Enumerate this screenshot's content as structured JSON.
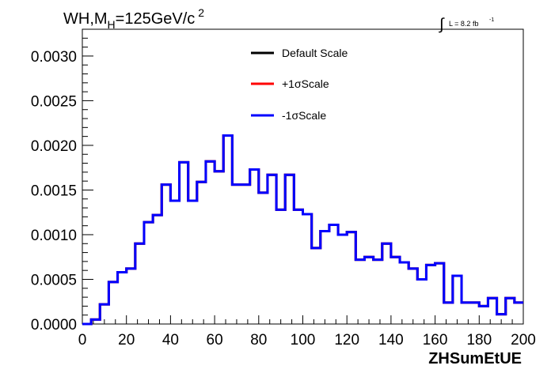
{
  "chart_data": {
    "type": "histogram",
    "title": {
      "main": "WH,M",
      "subscript": "H",
      "rest": "=125GeV/c",
      "superscript": "2"
    },
    "lumi": {
      "integral_symbol": "∫",
      "text": "L = 8.2 fb",
      "superscript": "-1"
    },
    "xlabel": "ZHSumEtUE",
    "ylabel": "",
    "xlim": [
      0,
      200
    ],
    "ylim": [
      0,
      0.0033
    ],
    "x_ticks": [
      "0",
      "20",
      "40",
      "60",
      "80",
      "100",
      "120",
      "140",
      "160",
      "180",
      "200"
    ],
    "y_ticks": [
      "0.0000",
      "0.0005",
      "0.0010",
      "0.0015",
      "0.0020",
      "0.0025",
      "0.0030"
    ],
    "legend_position": "top-center",
    "bin_edges_start": 0,
    "bin_width": 4,
    "series": [
      {
        "name": "Default Scale",
        "color": "#000000",
        "values": [
          0.0,
          5e-05,
          0.00022,
          0.00047,
          0.00058,
          0.00062,
          0.0009,
          0.00114,
          0.00122,
          0.00156,
          0.00138,
          0.00181,
          0.00138,
          0.00159,
          0.00182,
          0.00171,
          0.00211,
          0.00156,
          0.00156,
          0.00173,
          0.00147,
          0.00167,
          0.00128,
          0.00167,
          0.00128,
          0.00123,
          0.00085,
          0.00104,
          0.00111,
          0.001,
          0.00103,
          0.00072,
          0.00075,
          0.00072,
          0.0009,
          0.00075,
          0.00069,
          0.00062,
          0.0005,
          0.00066,
          0.00068,
          0.00024,
          0.00054,
          0.00024,
          0.00024,
          0.0002,
          0.00029,
          0.00011,
          0.00029,
          0.00024
        ]
      },
      {
        "name": "+1σScale",
        "color": "#ff0000",
        "values": [
          0.0,
          5e-05,
          0.00022,
          0.00047,
          0.00058,
          0.00062,
          0.0009,
          0.00114,
          0.00122,
          0.00156,
          0.00138,
          0.00181,
          0.00138,
          0.00159,
          0.00182,
          0.00171,
          0.00211,
          0.00156,
          0.00156,
          0.00173,
          0.00147,
          0.00167,
          0.00128,
          0.00167,
          0.00128,
          0.00123,
          0.00085,
          0.00104,
          0.00111,
          0.001,
          0.00103,
          0.00072,
          0.00075,
          0.00072,
          0.0009,
          0.00075,
          0.00069,
          0.00062,
          0.0005,
          0.00066,
          0.00068,
          0.00024,
          0.00054,
          0.00024,
          0.00024,
          0.0002,
          0.00029,
          0.00011,
          0.00029,
          0.00024
        ]
      },
      {
        "name": "-1σScale",
        "color": "#0000ff",
        "values": [
          0.0,
          5e-05,
          0.00022,
          0.00047,
          0.00058,
          0.00062,
          0.0009,
          0.00114,
          0.00122,
          0.00156,
          0.00138,
          0.00181,
          0.00138,
          0.00159,
          0.00182,
          0.00171,
          0.00211,
          0.00156,
          0.00156,
          0.00173,
          0.00147,
          0.00167,
          0.00128,
          0.00167,
          0.00128,
          0.00123,
          0.00085,
          0.00104,
          0.00111,
          0.001,
          0.00103,
          0.00072,
          0.00075,
          0.00072,
          0.0009,
          0.00075,
          0.00069,
          0.00062,
          0.0005,
          0.00066,
          0.00068,
          0.00024,
          0.00054,
          0.00024,
          0.00024,
          0.0002,
          0.00029,
          0.00011,
          0.00029,
          0.00024
        ]
      }
    ],
    "draw_order": [
      0,
      1,
      2
    ]
  }
}
